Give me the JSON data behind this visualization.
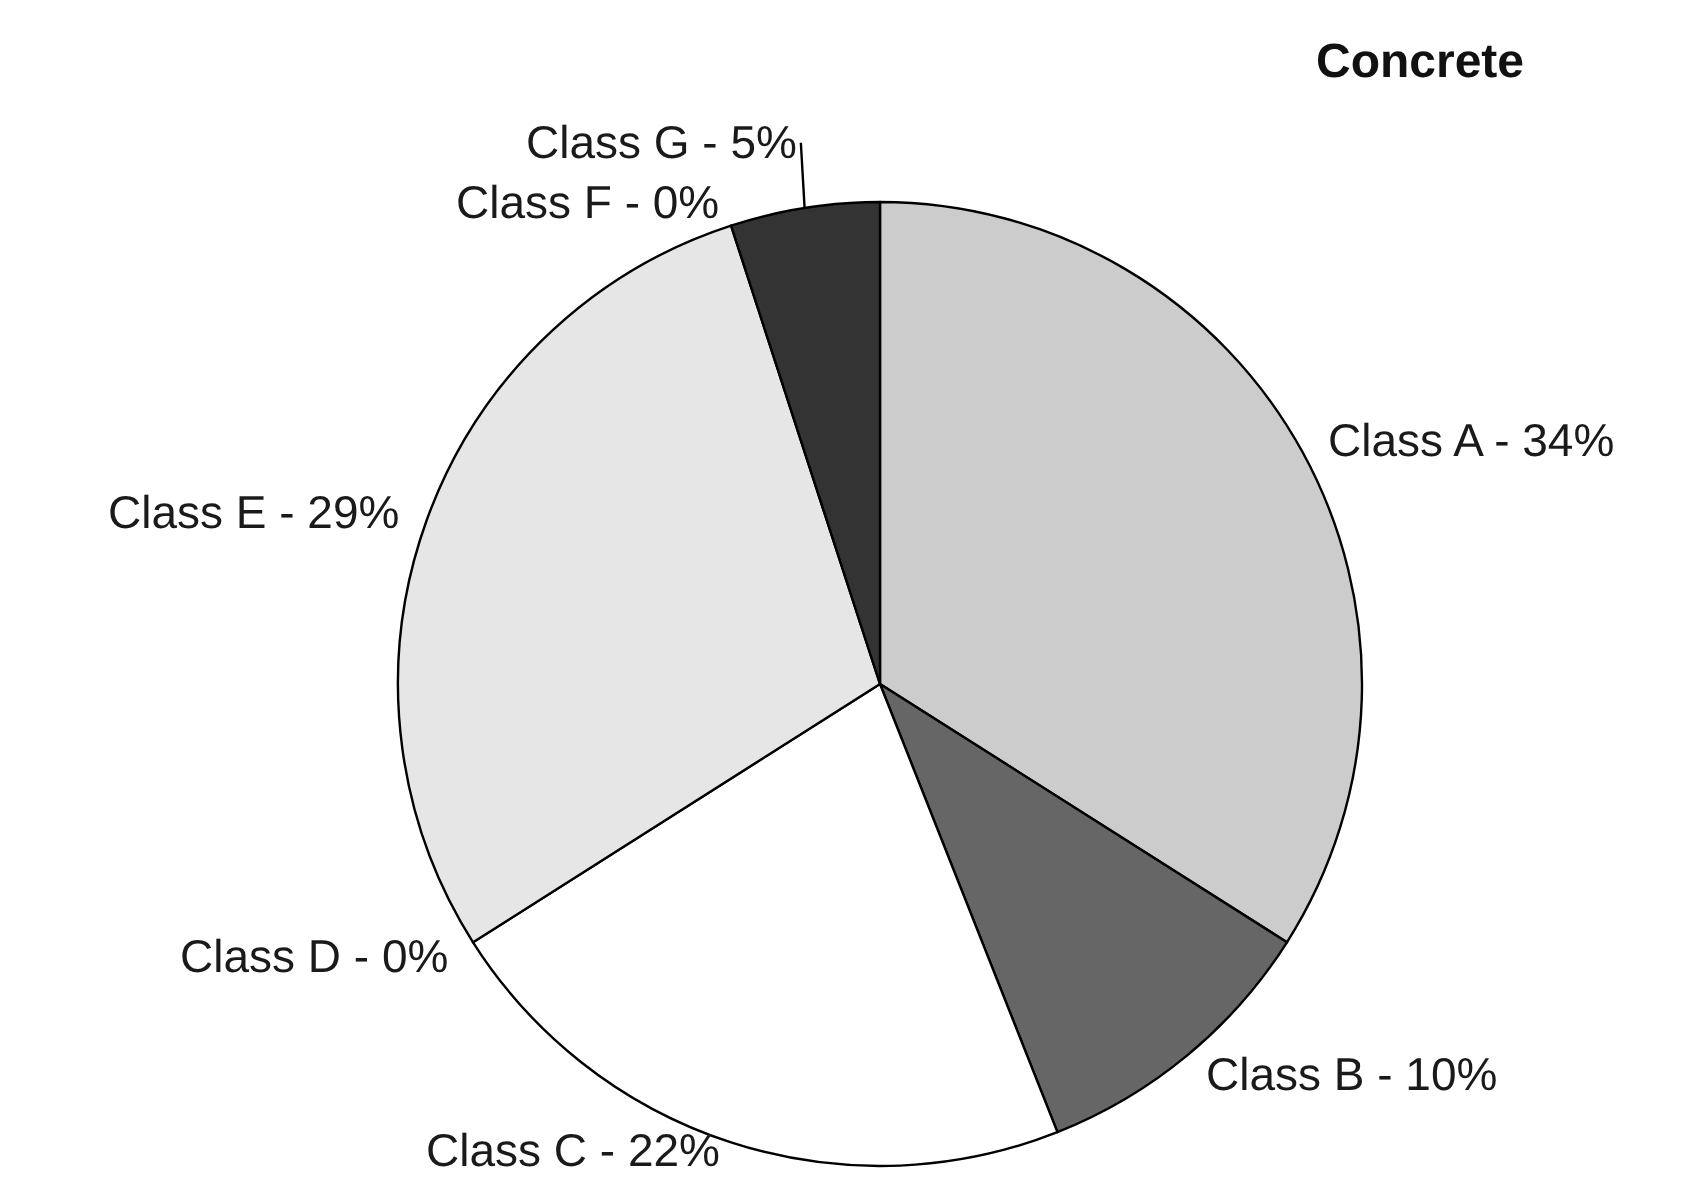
{
  "chart_data": {
    "type": "pie",
    "title": "Concrete",
    "categories": [
      "Class A - 34%",
      "Class B - 10%",
      "Class C - 22%",
      "Class D - 0%",
      "Class E - 29%",
      "Class F - 0%",
      "Class G - 5%"
    ],
    "values": [
      34,
      10,
      22,
      0,
      29,
      0,
      5
    ],
    "colors": [
      "#cccccc",
      "#666666",
      "#ffffff",
      "#999999",
      "#e6e6e6",
      "#b3b3b3",
      "#333333"
    ],
    "legend": false
  }
}
